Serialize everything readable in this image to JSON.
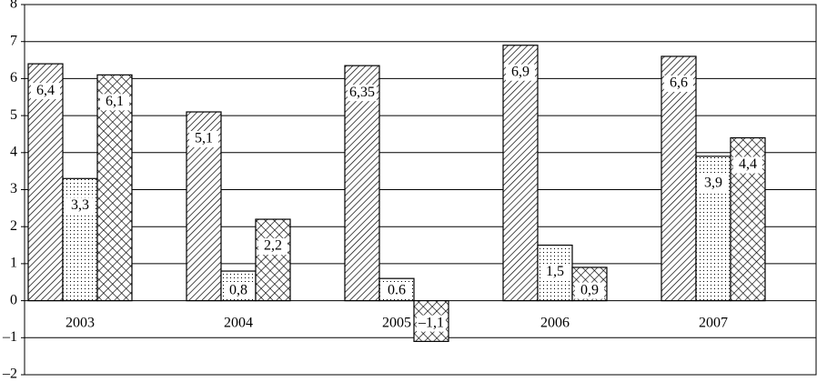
{
  "chart_data": {
    "type": "bar",
    "categories": [
      "2003",
      "2004",
      "2005",
      "2006",
      "2007"
    ],
    "series": [
      {
        "pattern": "diagonal",
        "color": "#000000",
        "values": [
          6.4,
          5.1,
          6.35,
          6.9,
          6.6
        ],
        "value_labels": [
          "6,4",
          "5,1",
          "6,35",
          "6,9",
          "6,6"
        ]
      },
      {
        "pattern": "dots",
        "color": "#000000",
        "values": [
          3.3,
          0.8,
          0.6,
          1.5,
          3.9
        ],
        "value_labels": [
          "3,3",
          "0,8",
          "0.6",
          "1,5",
          "3,9"
        ]
      },
      {
        "pattern": "crosshatch",
        "color": "#000000",
        "values": [
          6.1,
          2.2,
          -1.1,
          0.9,
          4.4
        ],
        "value_labels": [
          "6,1",
          "2,2",
          "–1,1",
          "0,9",
          "4,4"
        ]
      }
    ],
    "ylim": [
      -2,
      8
    ],
    "yticks": [
      {
        "value": -2,
        "label": "–2"
      },
      {
        "value": -1,
        "label": "–1"
      },
      0,
      1,
      2,
      3,
      4,
      5,
      6,
      7,
      8
    ],
    "grid": true
  }
}
